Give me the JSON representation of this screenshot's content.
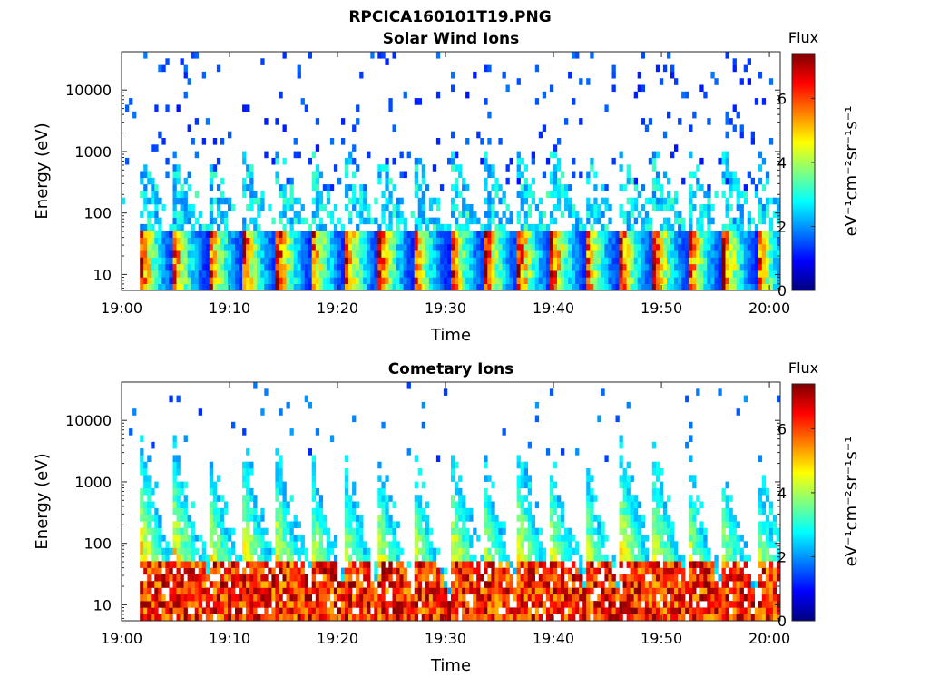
{
  "figure_title": "RPCICA160101T19.PNG",
  "chart_data": [
    {
      "type": "heatmap",
      "title": "Solar Wind Ions",
      "xlabel": "Time",
      "ylabel": "Energy (eV)",
      "x_range": [
        "19:00",
        "20:01"
      ],
      "x_ticks": [
        "19:00",
        "19:10",
        "19:20",
        "19:30",
        "19:40",
        "19:50",
        "20:00"
      ],
      "y_scale": "log",
      "ylim": [
        5.5,
        42000
      ],
      "y_ticks": [
        "10",
        "100",
        "1000",
        "10000"
      ],
      "colorbar": {
        "title": "Flux",
        "label": "eV⁻¹cm⁻²sr⁻¹s⁻¹",
        "range": [
          0,
          7.4
        ],
        "ticks": [
          "0",
          "2",
          "4",
          "6"
        ],
        "colormap": "jet"
      },
      "pulse_times_min": [
        2.3,
        5.3,
        8.6,
        11.8,
        15.0,
        18.1,
        21.3,
        24.4,
        27.6,
        31.0,
        34.2,
        37.3,
        40.4,
        43.5,
        46.7,
        49.9,
        53.1,
        56.3,
        59.4
      ],
      "low_energy_peak_flux": 5.6,
      "mid_energy_flux": 3.0,
      "high_energy_background_flux": 1.3
    },
    {
      "type": "heatmap",
      "title": "Cometary Ions",
      "xlabel": "Time",
      "ylabel": "Energy (eV)",
      "x_range": [
        "19:00",
        "20:01"
      ],
      "x_ticks": [
        "19:00",
        "19:10",
        "19:20",
        "19:30",
        "19:40",
        "19:50",
        "20:00"
      ],
      "y_scale": "log",
      "ylim": [
        5.5,
        42000
      ],
      "y_ticks": [
        "10",
        "100",
        "1000",
        "10000"
      ],
      "colorbar": {
        "title": "Flux",
        "label": "eV⁻¹cm⁻²sr⁻¹s⁻¹",
        "range": [
          0,
          7.4
        ],
        "ticks": [
          "0",
          "2",
          "4",
          "6"
        ],
        "colormap": "jet"
      },
      "pulse_times_min": [
        2.3,
        5.3,
        8.6,
        11.8,
        15.0,
        18.1,
        21.3,
        24.4,
        27.6,
        31.0,
        34.2,
        37.3,
        40.4,
        43.5,
        46.7,
        49.9,
        53.1,
        56.3,
        59.4
      ],
      "pulse_peak_energy_eV": [
        1600,
        1500,
        1100,
        1200,
        800,
        900,
        600,
        700,
        700,
        1200,
        600,
        1100,
        700,
        700,
        1500,
        900,
        600,
        500,
        600
      ],
      "low_energy_peak_flux": 6.8,
      "high_energy_background_flux": 1.5
    }
  ]
}
